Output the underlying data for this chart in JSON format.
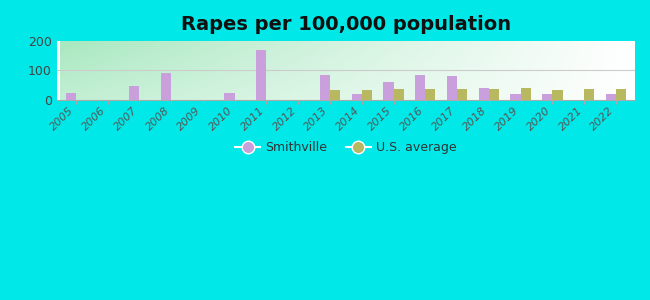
{
  "title": "Rapes per 100,000 population",
  "years": [
    2005,
    2006,
    2007,
    2008,
    2009,
    2010,
    2011,
    2012,
    2013,
    2014,
    2015,
    2016,
    2017,
    2018,
    2019,
    2020,
    2021,
    2022
  ],
  "smithville": [
    22,
    0,
    45,
    90,
    0,
    22,
    168,
    0,
    83,
    20,
    60,
    83,
    80,
    40,
    20,
    20,
    0,
    20
  ],
  "us_average": [
    0,
    0,
    0,
    0,
    0,
    0,
    0,
    0,
    32,
    32,
    35,
    35,
    35,
    37,
    40,
    32,
    38,
    35
  ],
  "smithville_color": "#c9a0dc",
  "us_average_color": "#b8b860",
  "ylim": [
    0,
    200
  ],
  "yticks": [
    0,
    100,
    200
  ],
  "background_outer": "#00e8e8",
  "bg_top_left": "#a8e8c0",
  "bg_right": "#e8f0e8",
  "title_fontsize": 14,
  "legend_smithville": "Smithville",
  "legend_us": "U.S. average",
  "bar_width": 0.32
}
